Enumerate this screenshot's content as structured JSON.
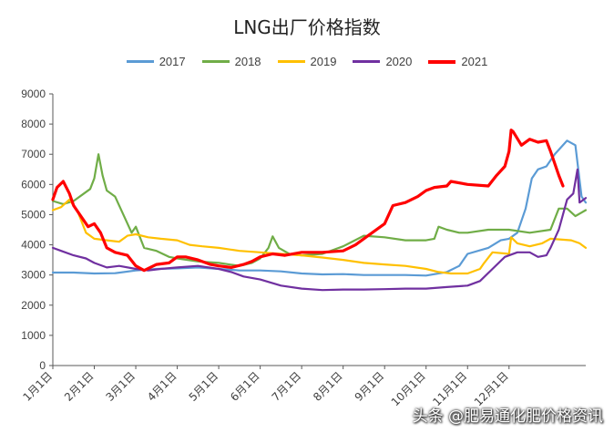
{
  "chart_data": {
    "type": "line",
    "title": "LNG出厂价格指数",
    "xlabel": "",
    "ylabel": "",
    "ylim": [
      0,
      9000
    ],
    "yticks": [
      0,
      1000,
      2000,
      3000,
      4000,
      5000,
      6000,
      7000,
      8000,
      9000
    ],
    "x_tick_labels": [
      "1月1日",
      "2月1日",
      "3月1日",
      "4月1日",
      "5月1日",
      "6月1日",
      "7月1日",
      "8月1日",
      "9月1日",
      "10月1日",
      "11月1日",
      "12月1日"
    ],
    "x_domain_months": [
      0,
      12
    ],
    "grid": false,
    "legend_position": "top",
    "series": [
      {
        "name": "2017",
        "color": "#5b9bd5",
        "points": [
          [
            0,
            3080
          ],
          [
            0.5,
            3080
          ],
          [
            1,
            3050
          ],
          [
            1.5,
            3060
          ],
          [
            2,
            3150
          ],
          [
            2.5,
            3200
          ],
          [
            3,
            3220
          ],
          [
            3.5,
            3250
          ],
          [
            4,
            3200
          ],
          [
            4.5,
            3150
          ],
          [
            5,
            3150
          ],
          [
            5.5,
            3120
          ],
          [
            6,
            3050
          ],
          [
            6.5,
            3020
          ],
          [
            7,
            3030
          ],
          [
            7.5,
            3000
          ],
          [
            8,
            3000
          ],
          [
            8.5,
            3000
          ],
          [
            9,
            2980
          ],
          [
            9.5,
            3100
          ],
          [
            9.8,
            3300
          ],
          [
            10,
            3700
          ],
          [
            10.5,
            3900
          ],
          [
            10.8,
            4150
          ],
          [
            11,
            4200
          ],
          [
            11.2,
            4400
          ],
          [
            11.4,
            5200
          ],
          [
            11.55,
            6200
          ],
          [
            11.7,
            6500
          ],
          [
            11.9,
            6600
          ],
          [
            12.1,
            7000
          ],
          [
            12.4,
            7450
          ],
          [
            12.6,
            7300
          ],
          [
            12.75,
            5600
          ],
          [
            12.85,
            5400
          ]
        ]
      },
      {
        "name": "2018",
        "color": "#70ad47",
        "points": [
          [
            0,
            5450
          ],
          [
            0.25,
            5350
          ],
          [
            0.5,
            5450
          ],
          [
            0.75,
            5700
          ],
          [
            0.9,
            5850
          ],
          [
            1,
            6200
          ],
          [
            1.1,
            7000
          ],
          [
            1.2,
            6300
          ],
          [
            1.3,
            5800
          ],
          [
            1.5,
            5600
          ],
          [
            1.7,
            5000
          ],
          [
            1.9,
            4400
          ],
          [
            2,
            4600
          ],
          [
            2.2,
            3900
          ],
          [
            2.5,
            3800
          ],
          [
            2.8,
            3600
          ],
          [
            3,
            3550
          ],
          [
            3.5,
            3450
          ],
          [
            4,
            3400
          ],
          [
            4.5,
            3300
          ],
          [
            4.8,
            3400
          ],
          [
            5,
            3550
          ],
          [
            5.2,
            3900
          ],
          [
            5.3,
            4280
          ],
          [
            5.45,
            3900
          ],
          [
            5.7,
            3700
          ],
          [
            6,
            3650
          ],
          [
            6.5,
            3700
          ],
          [
            7,
            3950
          ],
          [
            7.5,
            4300
          ],
          [
            8,
            4250
          ],
          [
            8.5,
            4150
          ],
          [
            9,
            4150
          ],
          [
            9.2,
            4200
          ],
          [
            9.3,
            4600
          ],
          [
            9.5,
            4500
          ],
          [
            9.8,
            4400
          ],
          [
            10,
            4400
          ],
          [
            10.5,
            4500
          ],
          [
            11,
            4500
          ],
          [
            11.5,
            4400
          ],
          [
            12,
            4500
          ],
          [
            12.2,
            5200
          ],
          [
            12.4,
            5200
          ],
          [
            12.6,
            4950
          ],
          [
            12.85,
            5150
          ]
        ]
      },
      {
        "name": "2019",
        "color": "#ffc000",
        "points": [
          [
            0,
            5150
          ],
          [
            0.2,
            5250
          ],
          [
            0.4,
            5500
          ],
          [
            0.6,
            5100
          ],
          [
            0.8,
            4400
          ],
          [
            1,
            4200
          ],
          [
            1.3,
            4150
          ],
          [
            1.6,
            4100
          ],
          [
            1.8,
            4300
          ],
          [
            2,
            4350
          ],
          [
            2.3,
            4250
          ],
          [
            2.6,
            4200
          ],
          [
            3,
            4150
          ],
          [
            3.3,
            4000
          ],
          [
            3.6,
            3950
          ],
          [
            4,
            3900
          ],
          [
            4.5,
            3800
          ],
          [
            5,
            3750
          ],
          [
            5.5,
            3700
          ],
          [
            6,
            3650
          ],
          [
            6.5,
            3580
          ],
          [
            7,
            3500
          ],
          [
            7.5,
            3400
          ],
          [
            8,
            3350
          ],
          [
            8.5,
            3300
          ],
          [
            9,
            3200
          ],
          [
            9.3,
            3100
          ],
          [
            9.6,
            3050
          ],
          [
            10,
            3050
          ],
          [
            10.3,
            3200
          ],
          [
            10.4,
            3400
          ],
          [
            10.6,
            3750
          ],
          [
            11,
            3700
          ],
          [
            11.05,
            4250
          ],
          [
            11.2,
            4050
          ],
          [
            11.5,
            3950
          ],
          [
            11.8,
            4050
          ],
          [
            12,
            4200
          ],
          [
            12.5,
            4150
          ],
          [
            12.7,
            4050
          ],
          [
            12.85,
            3900
          ]
        ]
      },
      {
        "name": "2020",
        "color": "#7030a0",
        "points": [
          [
            0,
            3900
          ],
          [
            0.2,
            3800
          ],
          [
            0.5,
            3650
          ],
          [
            0.8,
            3550
          ],
          [
            1,
            3400
          ],
          [
            1.3,
            3250
          ],
          [
            1.6,
            3300
          ],
          [
            2,
            3200
          ],
          [
            2.3,
            3150
          ],
          [
            2.6,
            3200
          ],
          [
            3,
            3250
          ],
          [
            3.5,
            3300
          ],
          [
            4,
            3200
          ],
          [
            4.3,
            3100
          ],
          [
            4.6,
            2950
          ],
          [
            5,
            2850
          ],
          [
            5.5,
            2650
          ],
          [
            6,
            2550
          ],
          [
            6.5,
            2500
          ],
          [
            7,
            2520
          ],
          [
            7.5,
            2520
          ],
          [
            8,
            2530
          ],
          [
            8.5,
            2550
          ],
          [
            9,
            2550
          ],
          [
            9.5,
            2600
          ],
          [
            10,
            2650
          ],
          [
            10.3,
            2800
          ],
          [
            10.6,
            3200
          ],
          [
            10.9,
            3600
          ],
          [
            11.2,
            3750
          ],
          [
            11.5,
            3750
          ],
          [
            11.7,
            3600
          ],
          [
            11.9,
            3650
          ],
          [
            12,
            3900
          ],
          [
            12.2,
            4500
          ],
          [
            12.4,
            5500
          ],
          [
            12.55,
            5700
          ],
          [
            12.65,
            6500
          ],
          [
            12.7,
            5400
          ],
          [
            12.85,
            5550
          ]
        ]
      },
      {
        "name": "2021",
        "color": "#ff0000",
        "points": [
          [
            0,
            5500
          ],
          [
            0.1,
            5900
          ],
          [
            0.25,
            6100
          ],
          [
            0.4,
            5700
          ],
          [
            0.5,
            5300
          ],
          [
            0.7,
            4900
          ],
          [
            0.85,
            4600
          ],
          [
            1,
            4700
          ],
          [
            1.15,
            4400
          ],
          [
            1.3,
            3900
          ],
          [
            1.5,
            3750
          ],
          [
            1.8,
            3650
          ],
          [
            2,
            3300
          ],
          [
            2.2,
            3150
          ],
          [
            2.5,
            3350
          ],
          [
            2.8,
            3400
          ],
          [
            3,
            3600
          ],
          [
            3.2,
            3600
          ],
          [
            3.5,
            3500
          ],
          [
            3.8,
            3350
          ],
          [
            4,
            3300
          ],
          [
            4.3,
            3250
          ],
          [
            4.6,
            3350
          ],
          [
            4.8,
            3450
          ],
          [
            5,
            3600
          ],
          [
            5.3,
            3700
          ],
          [
            5.6,
            3650
          ],
          [
            6,
            3750
          ],
          [
            6.5,
            3750
          ],
          [
            7,
            3800
          ],
          [
            7.3,
            4000
          ],
          [
            7.6,
            4300
          ],
          [
            8,
            4700
          ],
          [
            8.2,
            5300
          ],
          [
            8.5,
            5400
          ],
          [
            8.8,
            5600
          ],
          [
            9,
            5800
          ],
          [
            9.2,
            5900
          ],
          [
            9.5,
            5950
          ],
          [
            9.6,
            6100
          ],
          [
            10,
            6000
          ],
          [
            10.5,
            5950
          ],
          [
            10.7,
            6300
          ],
          [
            10.9,
            6600
          ],
          [
            11,
            7100
          ],
          [
            11.05,
            7800
          ],
          [
            11.1,
            7750
          ],
          [
            11.3,
            7300
          ],
          [
            11.5,
            7500
          ],
          [
            11.7,
            7400
          ],
          [
            11.9,
            7450
          ],
          [
            12,
            7100
          ],
          [
            12.2,
            6300
          ],
          [
            12.3,
            5950
          ]
        ]
      }
    ]
  },
  "watermark": "头条 @肥易通化肥价格资讯"
}
